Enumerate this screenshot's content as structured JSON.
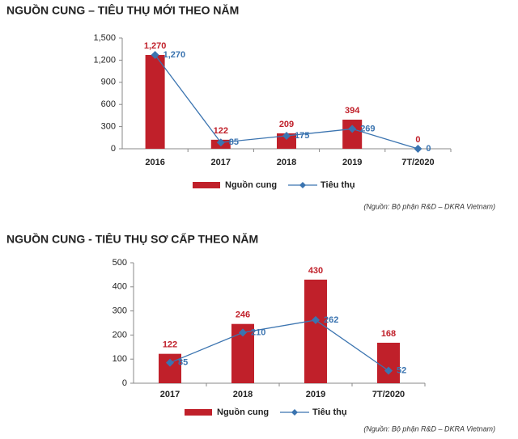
{
  "chart_data": [
    {
      "type": "bar",
      "title": "NGUỒN CUNG – TIÊU THỤ MỚI THEO NĂM",
      "categories": [
        "2016",
        "2017",
        "2018",
        "2019",
        "7T/2020"
      ],
      "series": [
        {
          "name": "Nguồn cung",
          "type": "bar",
          "color": "#c0202a",
          "values": [
            1270,
            122,
            209,
            394,
            0
          ],
          "value_labels": [
            "1,270",
            "122",
            "209",
            "394",
            "0"
          ]
        },
        {
          "name": "Tiêu thụ",
          "type": "line",
          "color": "#3b74b0",
          "values": [
            1270,
            85,
            175,
            269,
            0
          ],
          "value_labels": [
            "1,270",
            "85",
            "175",
            "269",
            "0"
          ]
        }
      ],
      "ylim": [
        0,
        1500
      ],
      "yticks": [
        0,
        300,
        600,
        900,
        {
          "value": 1200,
          "label": "1,200"
        },
        {
          "value": 1500,
          "label": "1,500"
        }
      ],
      "grid": false,
      "note": "(Nguồn: Bộ phận R&D – DKRA Vietnam)"
    },
    {
      "type": "bar",
      "title": "NGUỒN CUNG - TIÊU THỤ SƠ CẤP THEO NĂM",
      "categories": [
        "2017",
        "2018",
        "2019",
        "7T/2020"
      ],
      "series": [
        {
          "name": "Nguồn cung",
          "type": "bar",
          "color": "#c0202a",
          "values": [
            122,
            246,
            430,
            168
          ]
        },
        {
          "name": "Tiêu thụ",
          "type": "line",
          "color": "#3b74b0",
          "values": [
            85,
            210,
            262,
            52
          ]
        }
      ],
      "ylim": [
        0,
        500
      ],
      "yticks": [
        0,
        100,
        200,
        300,
        400,
        500
      ],
      "grid": false,
      "note": "(Nguồn: Bộ phận R&D – DKRA Vietnam)"
    }
  ]
}
